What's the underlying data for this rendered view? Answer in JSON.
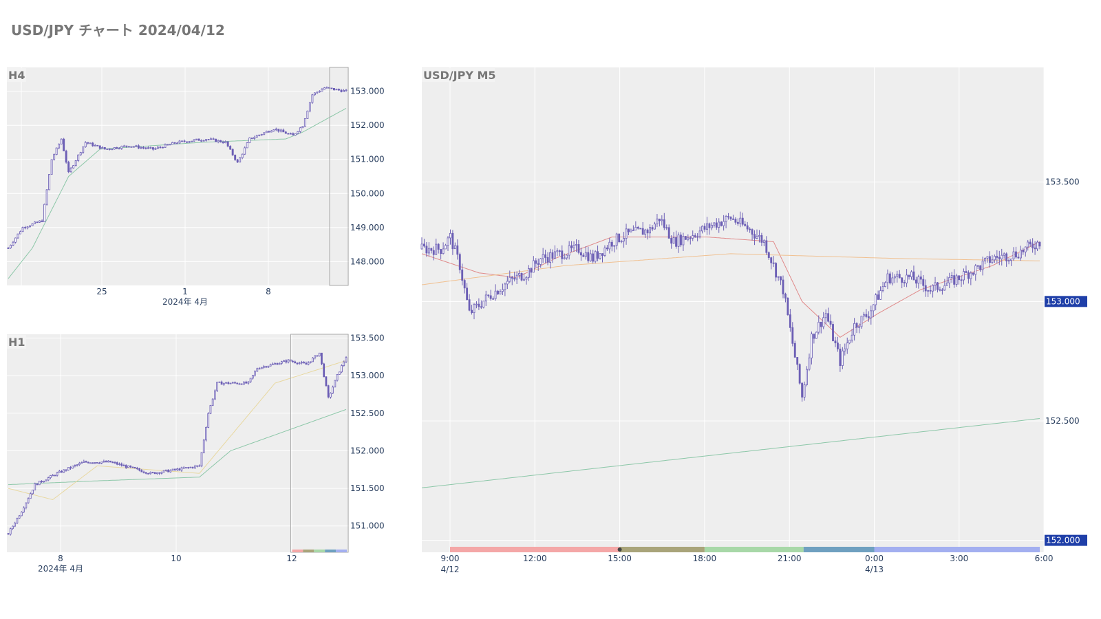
{
  "title": "USD/JPY チャート 2024/04/12",
  "colors": {
    "plot_bg": "#eeeeee",
    "grid": "#ffffff",
    "candle": "#6c5fb5",
    "ma_green": "#8cc7a8",
    "ma_red": "#e08a8a",
    "ma_orange": "#f0c090",
    "ma_yellow": "#e8d8a0",
    "badge": "#1f3fa8",
    "session_bar": [
      "#f4a7a7",
      "#a9a47a",
      "#a8d8a8",
      "#6fa0c0",
      "#a3aff0"
    ]
  },
  "chart_data": [
    {
      "name": "H4",
      "type": "candlestick",
      "title": "H4",
      "x_tick_labels": [
        "25",
        "1",
        "8"
      ],
      "x_sub_label": "2024年 4月",
      "y_ticks": [
        148,
        149,
        150,
        151,
        152,
        153
      ],
      "y_tick_labels": [
        "148.000",
        "149.000",
        "150.000",
        "151.000",
        "152.000",
        "153.000"
      ],
      "ylim": [
        147.3,
        153.7
      ],
      "close_anchors": [
        [
          0,
          148.4
        ],
        [
          6,
          149.0
        ],
        [
          14,
          149.2
        ],
        [
          18,
          151.0
        ],
        [
          22,
          151.6
        ],
        [
          25,
          150.6
        ],
        [
          32,
          151.5
        ],
        [
          40,
          151.3
        ],
        [
          50,
          151.4
        ],
        [
          60,
          151.3
        ],
        [
          70,
          151.5
        ],
        [
          82,
          151.6
        ],
        [
          90,
          151.5
        ],
        [
          95,
          150.9
        ],
        [
          100,
          151.6
        ],
        [
          110,
          151.9
        ],
        [
          118,
          151.7
        ],
        [
          122,
          152.0
        ],
        [
          126,
          152.9
        ],
        [
          131,
          153.1
        ],
        [
          140,
          153.0
        ]
      ],
      "candle_count": 141,
      "ma": [
        {
          "color_key": "ma_green",
          "values_anchor": [
            [
              0,
              147.5
            ],
            [
              10,
              148.4
            ],
            [
              25,
              150.5
            ],
            [
              38,
              151.3
            ],
            [
              80,
              151.5
            ],
            [
              115,
              151.6
            ],
            [
              122,
              151.8
            ],
            [
              140,
              152.5
            ]
          ]
        }
      ],
      "highlight_box": {
        "from_index": 134,
        "to_index": 140
      }
    },
    {
      "name": "H1",
      "type": "candlestick",
      "title": "H1",
      "x_tick_labels": [
        "8",
        "10",
        "12"
      ],
      "x_sub_label": "2024年 4月",
      "y_ticks": [
        151.0,
        151.5,
        152.0,
        152.5,
        153.0,
        153.5
      ],
      "y_tick_labels": [
        "151.000",
        "151.500",
        "152.000",
        "152.500",
        "153.000",
        "153.500"
      ],
      "ylim": [
        150.65,
        153.55
      ],
      "close_anchors": [
        [
          0,
          150.9
        ],
        [
          6,
          151.2
        ],
        [
          12,
          151.55
        ],
        [
          22,
          151.7
        ],
        [
          34,
          151.85
        ],
        [
          46,
          151.85
        ],
        [
          58,
          151.75
        ],
        [
          64,
          151.7
        ],
        [
          76,
          151.75
        ],
        [
          86,
          151.8
        ],
        [
          90,
          152.5
        ],
        [
          94,
          152.9
        ],
        [
          108,
          152.9
        ],
        [
          112,
          153.1
        ],
        [
          126,
          153.2
        ],
        [
          134,
          153.15
        ],
        [
          140,
          153.3
        ],
        [
          144,
          152.7
        ],
        [
          148,
          153.0
        ],
        [
          152,
          153.25
        ]
      ],
      "candle_count": 153,
      "ma": [
        {
          "color_key": "ma_green",
          "values_anchor": [
            [
              0,
              151.55
            ],
            [
              40,
              151.6
            ],
            [
              86,
              151.65
            ],
            [
              100,
              152.0
            ],
            [
              152,
              152.55
            ]
          ]
        },
        {
          "color_key": "ma_yellow",
          "values_anchor": [
            [
              0,
              151.5
            ],
            [
              20,
              151.35
            ],
            [
              40,
              151.8
            ],
            [
              86,
              151.7
            ],
            [
              120,
              152.9
            ],
            [
              152,
              153.2
            ]
          ]
        }
      ],
      "highlight_box": {
        "from_index": 128,
        "to_index": 152
      },
      "mini_session_bar": true
    },
    {
      "name": "USD/JPY M5",
      "type": "candlestick",
      "title": "USD/JPY M5",
      "x_tick_labels": [
        "9:00",
        "12:00",
        "15:00",
        "18:00",
        "21:00",
        "0:00",
        "3:00",
        "6:00"
      ],
      "x_sub_labels": [
        {
          "at": "9:00",
          "text": "4/12"
        },
        {
          "at": "0:00",
          "text": "4/13"
        }
      ],
      "y_ticks": [
        152.0,
        152.5,
        153.0,
        153.5
      ],
      "y_tick_labels": [
        "152.000",
        "152.500",
        "153.000",
        "153.500"
      ],
      "y_badges": [
        "153.000",
        "152.000"
      ],
      "ylim": [
        151.95,
        153.98
      ],
      "close_anchors": [
        [
          0,
          153.22
        ],
        [
          8,
          153.22
        ],
        [
          12,
          153.27
        ],
        [
          16,
          153.15
        ],
        [
          20,
          152.95
        ],
        [
          28,
          153.02
        ],
        [
          36,
          153.08
        ],
        [
          44,
          153.12
        ],
        [
          50,
          153.18
        ],
        [
          58,
          153.2
        ],
        [
          66,
          153.22
        ],
        [
          72,
          153.18
        ],
        [
          80,
          153.25
        ],
        [
          86,
          153.28
        ],
        [
          96,
          153.3
        ],
        [
          100,
          153.35
        ],
        [
          106,
          153.25
        ],
        [
          114,
          153.28
        ],
        [
          122,
          153.32
        ],
        [
          130,
          153.35
        ],
        [
          138,
          153.3
        ],
        [
          144,
          153.25
        ],
        [
          152,
          153.05
        ],
        [
          160,
          152.6
        ],
        [
          164,
          152.85
        ],
        [
          170,
          152.95
        ],
        [
          176,
          152.75
        ],
        [
          182,
          152.9
        ],
        [
          188,
          152.95
        ],
        [
          196,
          153.1
        ],
        [
          206,
          153.1
        ],
        [
          214,
          153.05
        ],
        [
          222,
          153.08
        ],
        [
          232,
          153.13
        ],
        [
          240,
          153.18
        ],
        [
          250,
          153.2
        ],
        [
          260,
          153.25
        ]
      ],
      "candle_count": 261,
      "ma": [
        {
          "color_key": "ma_red",
          "values_anchor": [
            [
              0,
              153.2
            ],
            [
              24,
              153.12
            ],
            [
              40,
              153.1
            ],
            [
              56,
              153.18
            ],
            [
              80,
              153.27
            ],
            [
              120,
              153.27
            ],
            [
              148,
              153.25
            ],
            [
              160,
              153.0
            ],
            [
              176,
              152.85
            ],
            [
              192,
              152.95
            ],
            [
              210,
              153.05
            ],
            [
              240,
              153.15
            ],
            [
              260,
              153.25
            ]
          ]
        },
        {
          "color_key": "ma_orange",
          "values_anchor": [
            [
              0,
              153.07
            ],
            [
              60,
              153.15
            ],
            [
              130,
              153.2
            ],
            [
              200,
              153.18
            ],
            [
              260,
              153.17
            ]
          ]
        },
        {
          "color_key": "ma_green",
          "values_anchor": [
            [
              0,
              152.22
            ],
            [
              260,
              152.51
            ]
          ]
        }
      ],
      "session_bar": [
        {
          "from": "9:00",
          "to": "15:00",
          "color_index": 0
        },
        {
          "from": "15:00",
          "to": "18:00",
          "color_index": 1
        },
        {
          "from": "18:00",
          "to": "21:30",
          "color_index": 2
        },
        {
          "from": "21:30",
          "to": "0:00",
          "color_index": 3
        },
        {
          "from": "0:00",
          "to": "6:00",
          "color_index": 4
        }
      ]
    }
  ]
}
